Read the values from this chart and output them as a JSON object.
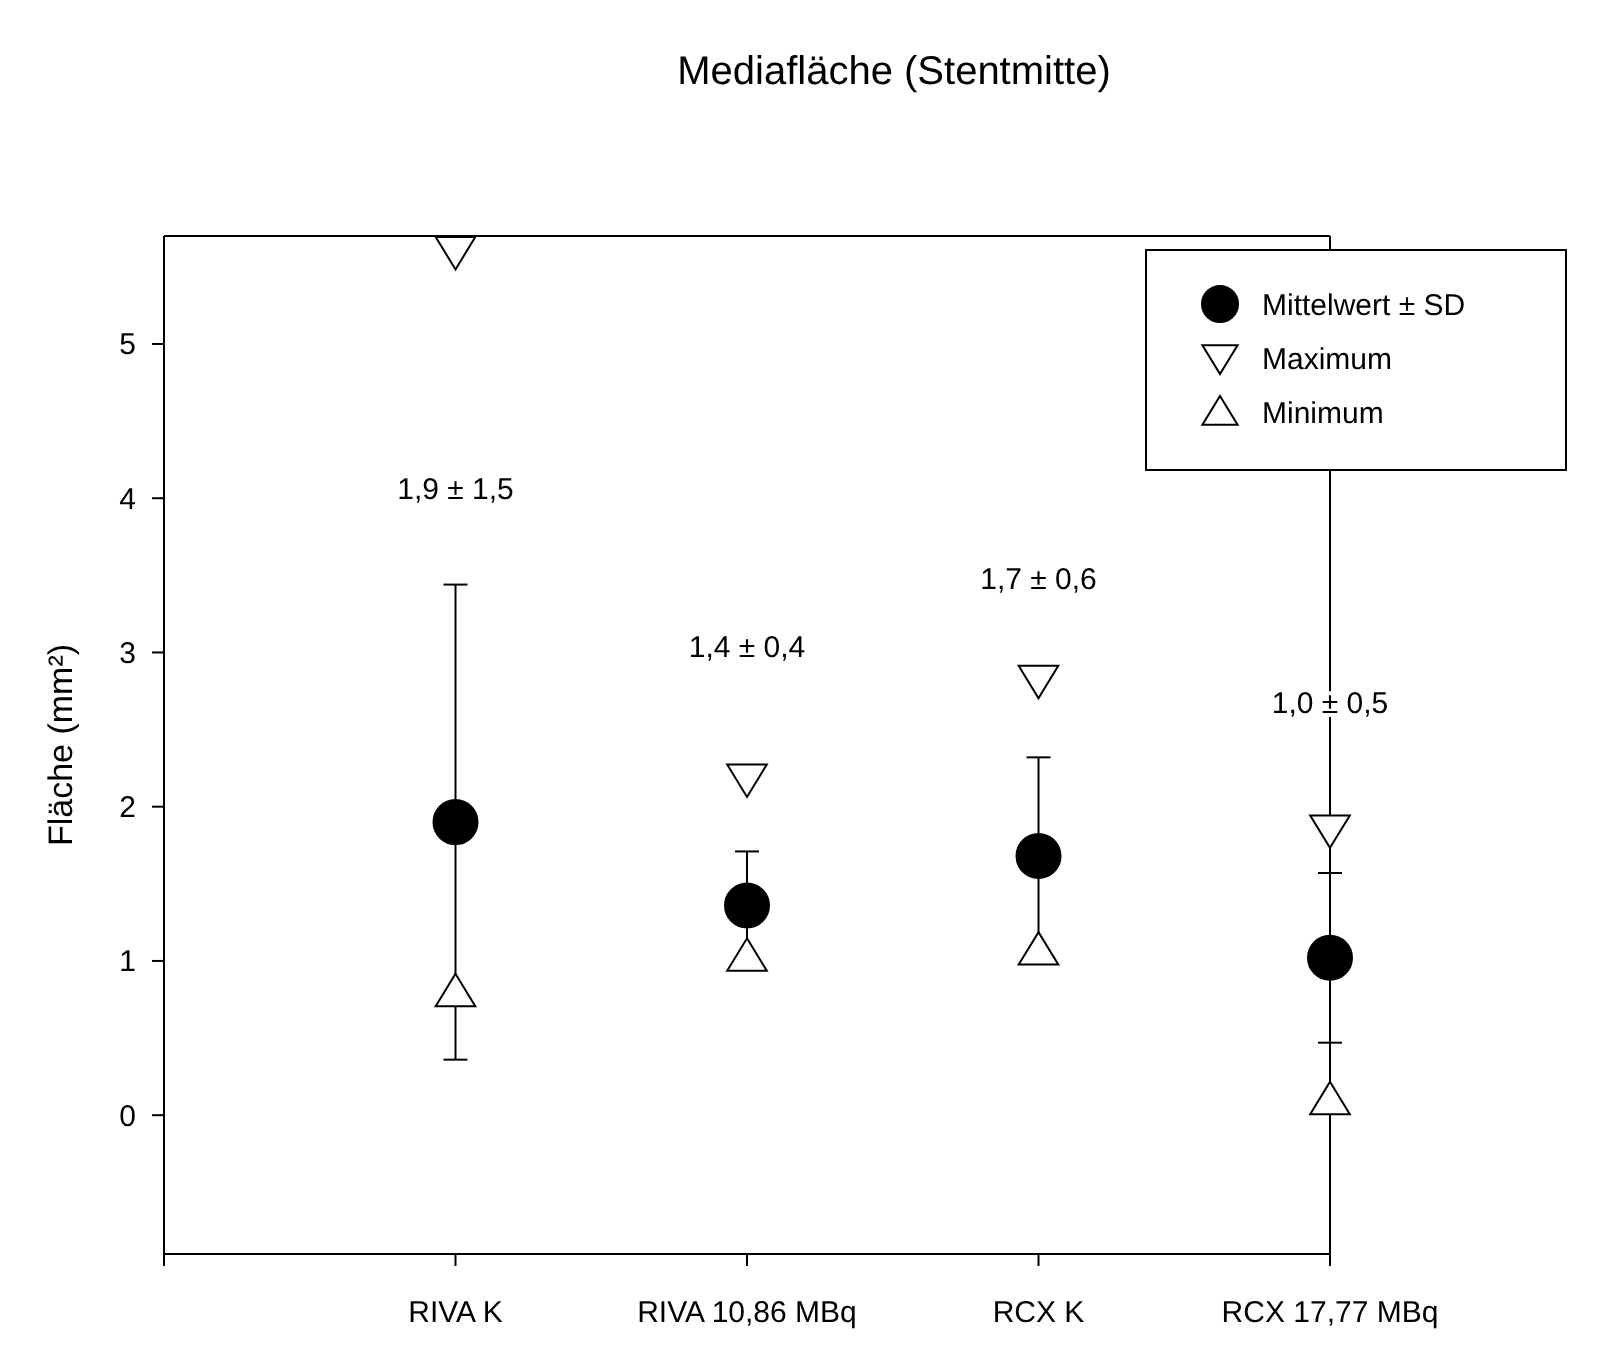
{
  "chart_data": {
    "type": "scatter",
    "title": "Mediafläche (Stentmitte)",
    "ylabel": "Fläche (mm²)",
    "categories": [
      null,
      "RIVA K",
      "RIVA 10,86 MBq",
      "RCX K",
      "RCX 17,77 MBq"
    ],
    "ylim": [
      -0.9,
      5.7
    ],
    "yticks": [
      0,
      1,
      2,
      3,
      4,
      5
    ],
    "legend": "top right",
    "grid": false,
    "series": [
      {
        "name": "Mittelwert ± SD",
        "color": "#000000",
        "marker": "circle",
        "values": [
          null,
          1.9,
          1.36,
          1.68,
          1.02
        ],
        "errors": [
          null,
          1.54,
          0.35,
          0.64,
          0.55
        ]
      },
      {
        "name": "Maximum",
        "color": "#000000",
        "marker": "triangle-down",
        "values": [
          null,
          5.6,
          2.18,
          2.82,
          1.85
        ]
      },
      {
        "name": "Minimum",
        "color": "#000000",
        "marker": "triangle",
        "values": [
          null,
          0.8,
          1.03,
          1.07,
          0.1
        ]
      }
    ],
    "annotations": [
      "1,9 ± 1,5",
      "1,4 ± 0,4",
      "1,7 ± 0,6",
      "1,0 ± 0,5"
    ]
  }
}
